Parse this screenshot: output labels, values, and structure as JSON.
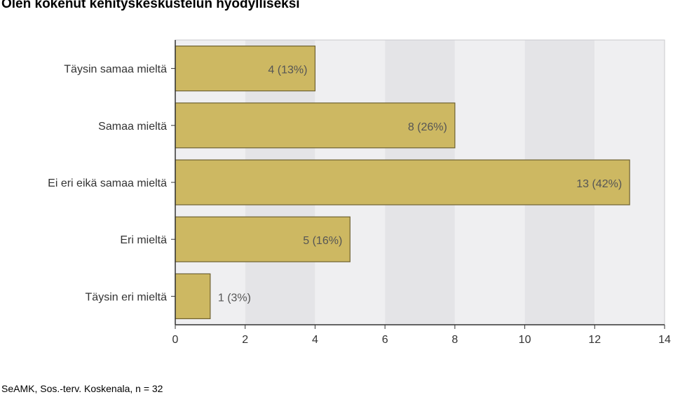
{
  "title": "Olen kokenut kehityskeskustelun hyödylliseksi",
  "footer": "SeAMK, Sos.-terv. Koskenala, n = 32",
  "colors": {
    "bar_fill": "#cdb862",
    "bar_stroke": "#6f6232",
    "band_light": "#efeff1",
    "band_dark": "#e4e4e7"
  },
  "chart_data": {
    "type": "bar",
    "orientation": "horizontal",
    "title": "Olen kokenut kehityskeskustelun hyödylliseksi",
    "categories": [
      "Täysin samaa mieltä",
      "Samaa mieltä",
      "Ei eri eikä samaa mieltä",
      "Eri mieltä",
      "Täysin eri mieltä"
    ],
    "values": [
      4,
      8,
      13,
      5,
      1
    ],
    "data_labels": [
      "4 (13%)",
      "8 (26%)",
      "13 (42%)",
      "5 (16%)",
      "1 (3%)"
    ],
    "xlim": [
      0,
      14
    ],
    "x_ticks": [
      0,
      2,
      4,
      6,
      8,
      10,
      12,
      14
    ],
    "grid": false,
    "xlabel": "",
    "ylabel": ""
  }
}
